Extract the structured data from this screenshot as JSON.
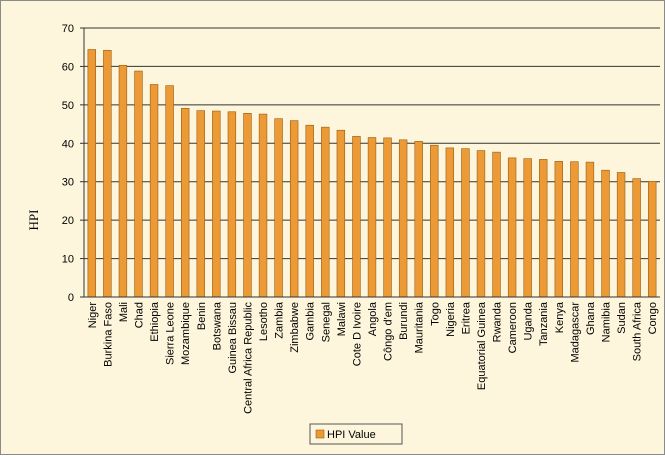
{
  "chart_data": {
    "type": "bar",
    "categories": [
      "Niger",
      "Burkina Faso",
      "Mali",
      "Chad",
      "Ethiopia",
      "Sierra Leone",
      "Mozambique",
      "Benin",
      "Botswana",
      "Guinea Bissau",
      "Central Africa Republic",
      "Lesotho",
      "Zambia",
      "Zimbabwe",
      "Gambia",
      "Senegal",
      "Malawi",
      "Cote D Ivoire",
      "Angola",
      "Côngo d'em",
      "Burundi",
      "Mauritania",
      "Togo",
      "Nigeria",
      "Eritrea",
      "Equatorial Guinea",
      "Rwanda",
      "Cameroon",
      "Uganda",
      "Tanzania",
      "Kenya",
      "Madagascar",
      "Ghana",
      "Namibia",
      "Sudan",
      "South Africa",
      "Congo"
    ],
    "series": [
      {
        "name": "HPI Value",
        "color": "#ec9a35",
        "values": [
          64.4,
          64.2,
          60.3,
          58.8,
          55.3,
          55.0,
          49.1,
          48.5,
          48.4,
          48.2,
          47.8,
          47.6,
          46.4,
          45.9,
          44.7,
          44.2,
          43.4,
          41.8,
          41.5,
          41.4,
          40.9,
          40.5,
          39.5,
          38.8,
          38.6,
          38.1,
          37.7,
          36.2,
          36.0,
          35.8,
          35.3,
          35.2,
          35.1,
          33.0,
          32.4,
          30.8,
          30.1
        ]
      }
    ],
    "y_label": "HPI",
    "ylim": [
      0,
      70
    ],
    "yticks": [
      0,
      10,
      20,
      30,
      40,
      50,
      60,
      70
    ],
    "grid": true,
    "legend": "bottom"
  }
}
